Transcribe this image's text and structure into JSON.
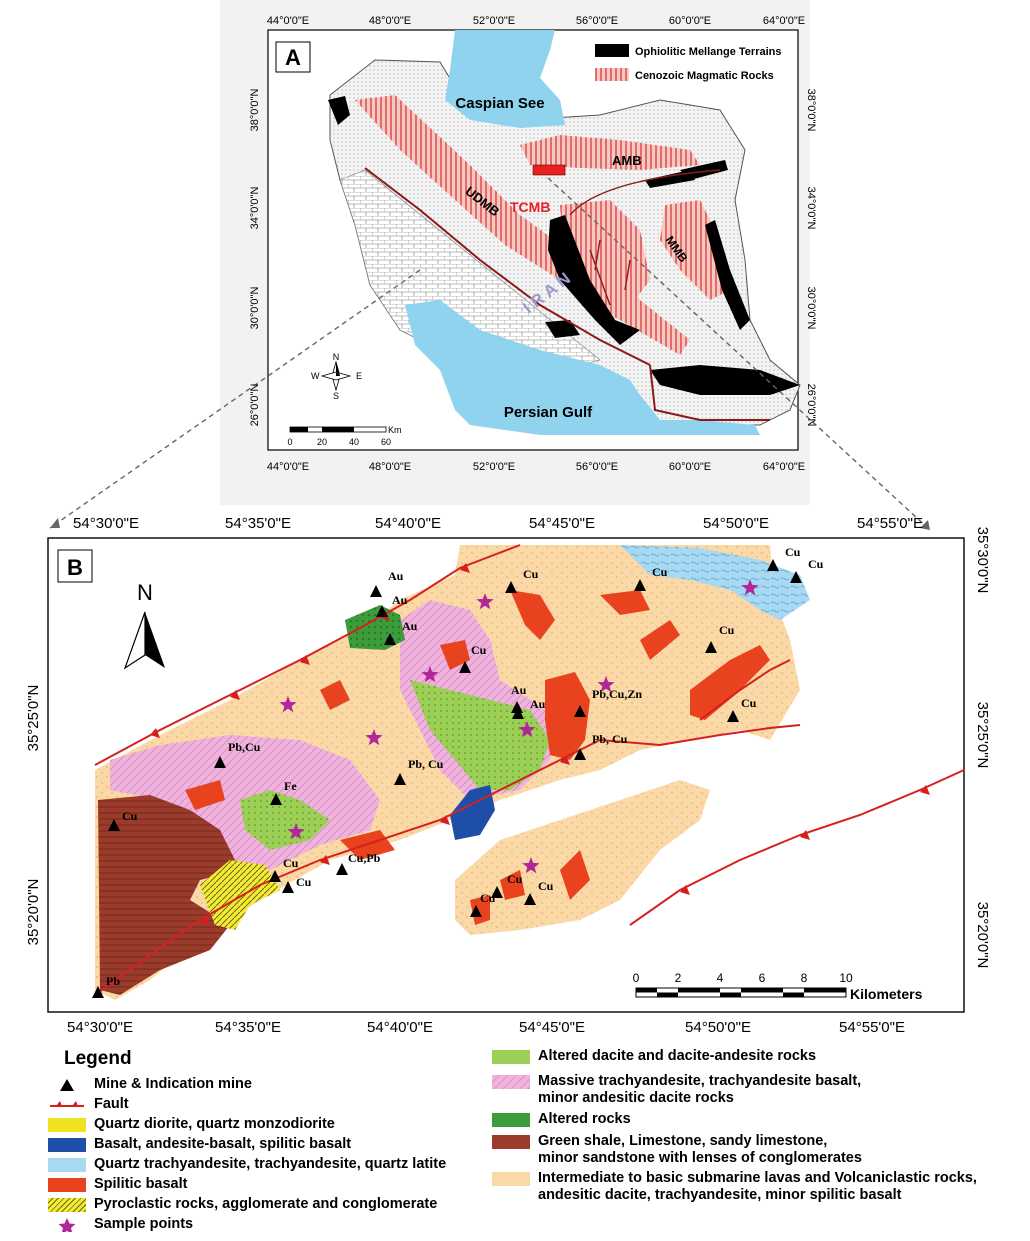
{
  "panel_a": {
    "label": "A",
    "top_ticks": [
      "44°0'0\"E",
      "48°0'0\"E",
      "52°0'0\"E",
      "56°0'0\"E",
      "60°0'0\"E",
      "64°0'0\"E"
    ],
    "bottom_ticks": [
      "44°0'0\"E",
      "48°0'0\"E",
      "52°0'0\"E",
      "56°0'0\"E",
      "60°0'0\"E",
      "64°0'0\"E"
    ],
    "left_ticks": [
      "38°0'0\"N",
      "34°0'0\"N",
      "30°0'0\"N",
      "26°0'0\"N"
    ],
    "right_ticks": [
      "38°0'0\"N",
      "34°0'0\"N",
      "30°0'0\"N",
      "26°0'0\"N"
    ],
    "legend": [
      {
        "label": "Ophiolitic Mellange Terrains",
        "color": "#000000"
      },
      {
        "label": "Cenozoic Magmatic Rocks",
        "color": "#e84f4f"
      }
    ],
    "water_labels": [
      "Caspian See",
      "Persian Gulf"
    ],
    "zone_labels": [
      "AMB",
      "UDMB",
      "TCMB",
      "MMB"
    ],
    "country_label": "I R A N",
    "compass": {
      "n": "N",
      "s": "S",
      "e": "E",
      "w": "W"
    },
    "scale_labels": [
      "0",
      "20",
      "40",
      "60"
    ],
    "scale_unit": "Km",
    "colors": {
      "water": "#8fd3ee",
      "magmatic": "#e84f4f",
      "ophiolite": "#000000",
      "tcmb": "#e82020"
    }
  },
  "panel_b": {
    "label": "B",
    "north": "N",
    "top_ticks": [
      "54°30'0\"E",
      "54°35'0\"E",
      "54°40'0\"E",
      "54°45'0\"E",
      "54°50'0\"E",
      "54°55'0\"E"
    ],
    "bottom_ticks": [
      "54°30'0\"E",
      "54°35'0\"E",
      "54°40'0\"E",
      "54°45'0\"E",
      "54°50'0\"E",
      "54°55'0\"E"
    ],
    "left_ticks": [
      "35°25'0\"N",
      "35°20'0\"N"
    ],
    "right_ticks": [
      "35°30'0\"N",
      "35°25'0\"N",
      "35°20'0\"N"
    ],
    "scale_labels": [
      "0",
      "2",
      "4",
      "6",
      "8",
      "10"
    ],
    "scale_unit": "Kilometers",
    "mines": [
      "Cu",
      "Cu",
      "Cu",
      "Cu",
      "Au",
      "Au",
      "Au",
      "Cu",
      "Cu",
      "Pb,Cu,Zn",
      "Au",
      "Au",
      "Pb, Cu",
      "Cu",
      "Pb,Cu",
      "Fe",
      "Pb, Cu",
      "Cu",
      "Cu",
      "Cu",
      "Cu,Pb",
      "Cu",
      "Cu",
      "Cu",
      "Pb"
    ],
    "colors": {
      "intermediate": "#fbd9a6",
      "trachyandesite": "#f0b3dd",
      "dacite": "#9ccf55",
      "spilitic": "#e8431e",
      "shale": "#9b3b2c",
      "basalt": "#1d4fa8",
      "quartz_trach": "#a9d8f2",
      "altered": "#3c9c3c",
      "quartz_diorite": "#f0e020",
      "pyroclastic": "#f0e020",
      "star": "#b0279a",
      "fault": "#d62020"
    }
  },
  "legend": {
    "title": "Legend",
    "left": [
      {
        "label": "Mine & Indication mine",
        "icon": "triangle"
      },
      {
        "label": "Fault",
        "icon": "fault-line"
      },
      {
        "label": "Quartz diorite, quartz monzodiorite",
        "color": "#f0e020"
      },
      {
        "label": "Basalt, andesite-basalt, spilitic basalt",
        "color": "#1d4fa8"
      },
      {
        "label": "Quartz trachyandesite, trachyandesite, quartz latite",
        "color": "#a9d8f2"
      },
      {
        "label": "Spilitic basalt",
        "color": "#e8431e"
      },
      {
        "label": "Pyroclastic rocks, agglomerate and conglomerate",
        "color": "#f0e020"
      },
      {
        "label": "Sample points",
        "icon": "star"
      }
    ],
    "right": [
      {
        "label": "Altered dacite and dacite-andesite rocks",
        "color": "#9ccf55"
      },
      {
        "label": "Massive trachyandesite, trachyandesite basalt,\nminor andesitic dacite rocks",
        "color": "#f0b3dd"
      },
      {
        "label": "Altered rocks",
        "color": "#3c9c3c"
      },
      {
        "label": "Green shale, Limestone, sandy limestone,\n minor sandstone with lenses of conglomerates",
        "color": "#9b3b2c"
      },
      {
        "label": "Intermediate to basic submarine lavas and Volcaniclastic rocks,\nandesitic dacite, trachyandesite, minor spilitic basalt",
        "color": "#fbd9a6"
      }
    ]
  }
}
